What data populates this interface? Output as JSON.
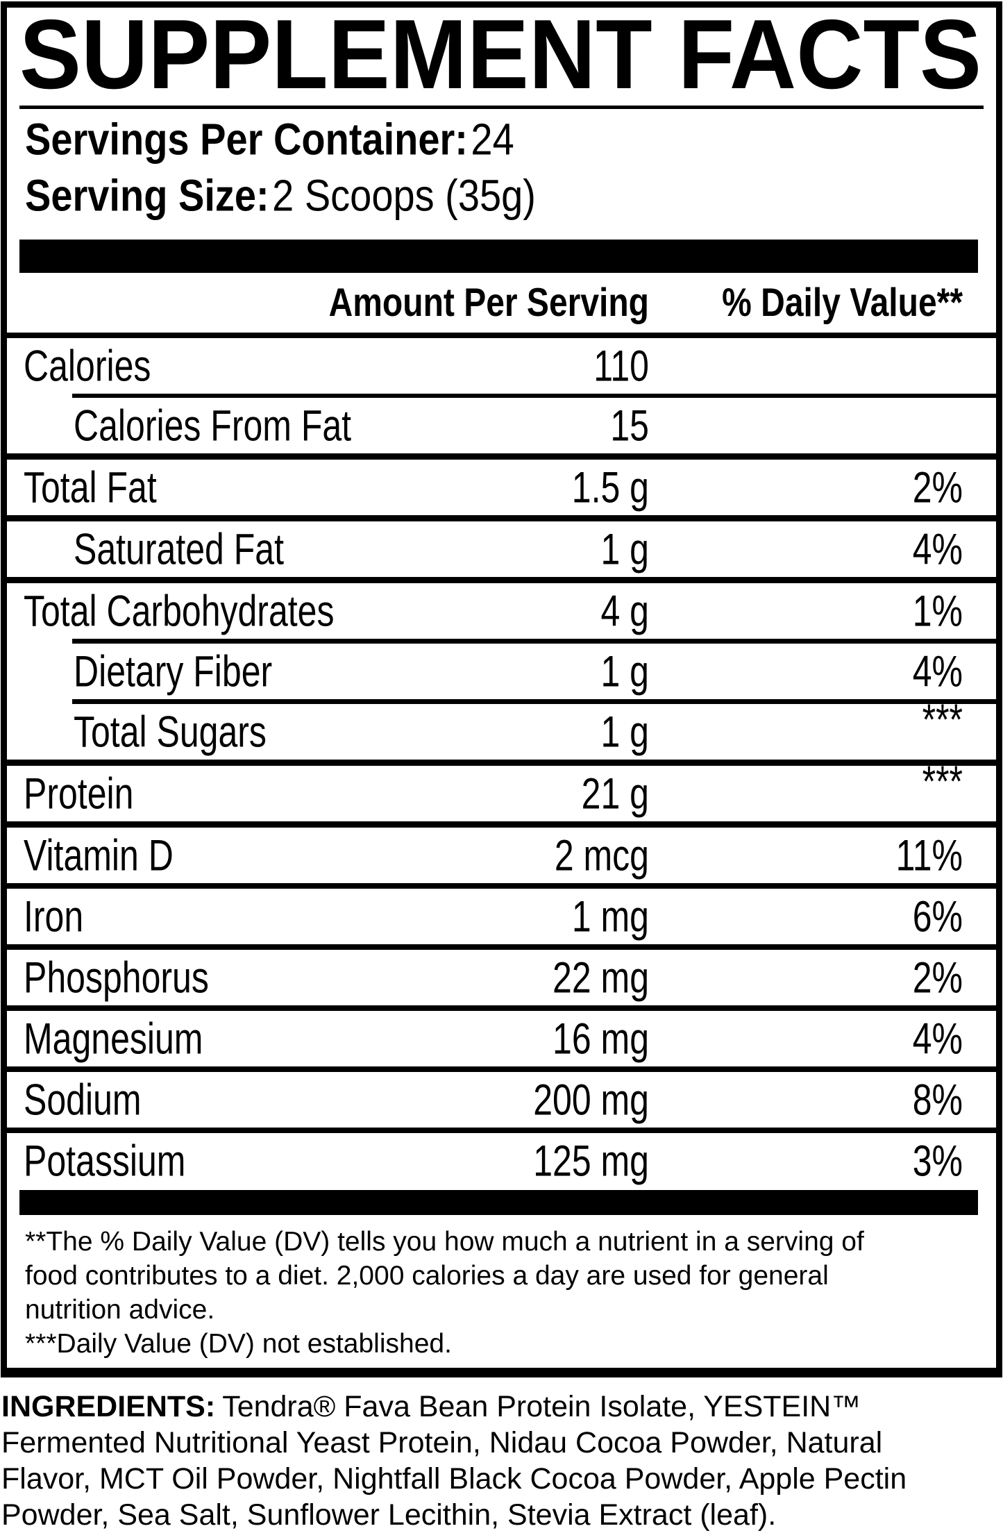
{
  "title": "SUPPLEMENT FACTS",
  "serving_info": {
    "servings_label": "Servings Per Container:",
    "servings_value": "24",
    "size_label": "Serving Size:",
    "size_value": "2 Scoops (35g)"
  },
  "table": {
    "amount_header": "Amount Per Serving",
    "dv_header": "% Daily Value**",
    "rows": [
      {
        "label": "Calories",
        "amount": "110",
        "dv": ""
      },
      {
        "label": "Calories From Fat",
        "amount": "15",
        "dv": ""
      },
      {
        "label": "Total Fat",
        "amount": "1.5 g",
        "dv": "2%"
      },
      {
        "label": "Saturated Fat",
        "amount": "1 g",
        "dv": "4%"
      },
      {
        "label": "Total Carbohydrates",
        "amount": "4 g",
        "dv": "1%"
      },
      {
        "label": "Dietary Fiber",
        "amount": "1 g",
        "dv": "4%"
      },
      {
        "label": "Total Sugars",
        "amount": "1 g",
        "dv": "***"
      },
      {
        "label": "Protein",
        "amount": "21 g",
        "dv": "***"
      },
      {
        "label": "Vitamin D",
        "amount": "2 mcg",
        "dv": "11%"
      },
      {
        "label": "Iron",
        "amount": "1 mg",
        "dv": "6%"
      },
      {
        "label": "Phosphorus",
        "amount": "22 mg",
        "dv": "2%"
      },
      {
        "label": "Magnesium",
        "amount": "16 mg",
        "dv": "4%"
      },
      {
        "label": "Sodium",
        "amount": "200 mg",
        "dv": "8%"
      },
      {
        "label": "Potassium",
        "amount": "125 mg",
        "dv": "3%"
      }
    ]
  },
  "footnotes": {
    "lines": [
      "**The % Daily Value (DV) tells you how much a nutrient in a serving of",
      "food contributes to a diet. 2,000 calories a day are used for general",
      "nutrition advice.",
      "***Daily Value (DV) not established."
    ]
  },
  "ingredients": {
    "label": "INGREDIENTS:",
    "lines": [
      "Tendra® Fava Bean Protein Isolate, YESTEIN™",
      "Fermented Nutritional Yeast Protein, Nidau Cocoa Powder, Natural",
      "Flavor, MCT Oil Powder, Nightfall Black Cocoa Powder, Apple Pectin",
      "Powder, Sea Salt, Sunflower Lecithin, Stevia Extract (leaf)."
    ]
  },
  "colors": {
    "ink": "#000000",
    "paper": "#ffffff"
  }
}
